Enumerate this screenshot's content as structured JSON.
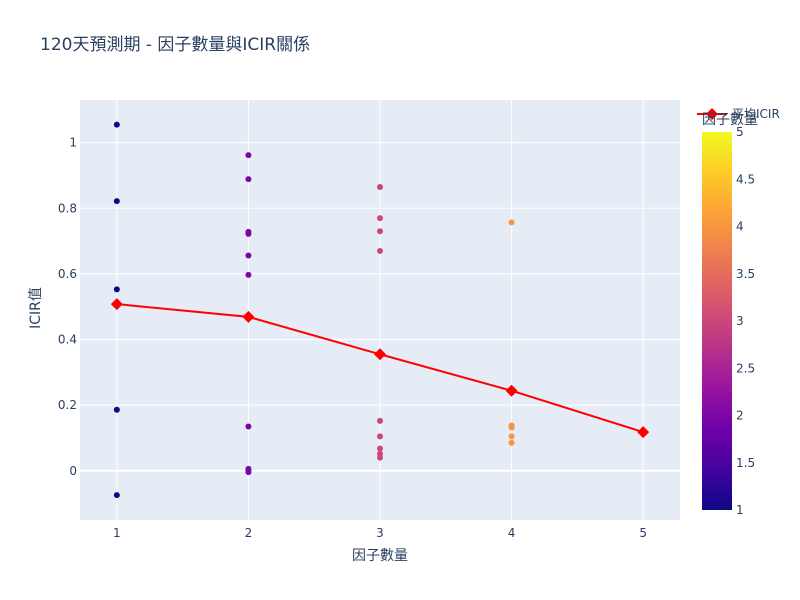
{
  "chart_data": {
    "type": "scatter",
    "title": "120天預測期 - 因子數量與ICIR關係",
    "xlabel": "因子數量",
    "ylabel": "ICIR值",
    "xlim": [
      0.72,
      5.28
    ],
    "ylim": [
      -0.15,
      1.13
    ],
    "x_ticks": [
      1,
      2,
      3,
      4,
      5
    ],
    "y_ticks": [
      0,
      0.2,
      0.4,
      0.6,
      0.8,
      1
    ],
    "grid": true,
    "series": [
      {
        "kind": "markers",
        "color_by": "x",
        "points": [
          {
            "x": 1,
            "y": 1.055
          },
          {
            "x": 1,
            "y": 0.822
          },
          {
            "x": 1,
            "y": 0.553
          },
          {
            "x": 1,
            "y": 0.186
          },
          {
            "x": 1,
            "y": -0.074
          },
          {
            "x": 2,
            "y": 0.962
          },
          {
            "x": 2,
            "y": 0.889
          },
          {
            "x": 2,
            "y": 0.728
          },
          {
            "x": 2,
            "y": 0.722
          },
          {
            "x": 2,
            "y": 0.656
          },
          {
            "x": 2,
            "y": 0.597
          },
          {
            "x": 2,
            "y": 0.135
          },
          {
            "x": 2,
            "y": 0.006
          },
          {
            "x": 2,
            "y": 0.0
          },
          {
            "x": 2,
            "y": -0.004
          },
          {
            "x": 3,
            "y": 0.865
          },
          {
            "x": 3,
            "y": 0.77
          },
          {
            "x": 3,
            "y": 0.73
          },
          {
            "x": 3,
            "y": 0.67
          },
          {
            "x": 3,
            "y": 0.152
          },
          {
            "x": 3,
            "y": 0.105
          },
          {
            "x": 3,
            "y": 0.068
          },
          {
            "x": 3,
            "y": 0.052
          },
          {
            "x": 3,
            "y": 0.04
          },
          {
            "x": 4,
            "y": 0.757
          },
          {
            "x": 4,
            "y": 0.138
          },
          {
            "x": 4,
            "y": 0.132
          },
          {
            "x": 4,
            "y": 0.105
          },
          {
            "x": 4,
            "y": 0.085
          }
        ]
      },
      {
        "name": "平均ICIR",
        "kind": "lines+markers",
        "color": "#ff0000",
        "x": [
          1,
          2,
          3,
          4,
          5
        ],
        "y": [
          0.508,
          0.469,
          0.355,
          0.244,
          0.118
        ]
      }
    ],
    "colorbar": {
      "title": "因子數量",
      "range": [
        1,
        5
      ],
      "ticks": [
        "1",
        "1.5",
        "2",
        "2.5",
        "3",
        "3.5",
        "4",
        "4.5",
        "5"
      ],
      "colorscale": [
        "#0d0887",
        "#46039f",
        "#7201a8",
        "#9c179e",
        "#bd3786",
        "#d8576b",
        "#ed7953",
        "#fb9f3a",
        "#fdca26",
        "#f0f921"
      ]
    },
    "legend_position": "top-right",
    "colors": {
      "plot_bg": "#e5ecf6",
      "grid": "#ffffff",
      "text": "#2a3f5f"
    }
  }
}
